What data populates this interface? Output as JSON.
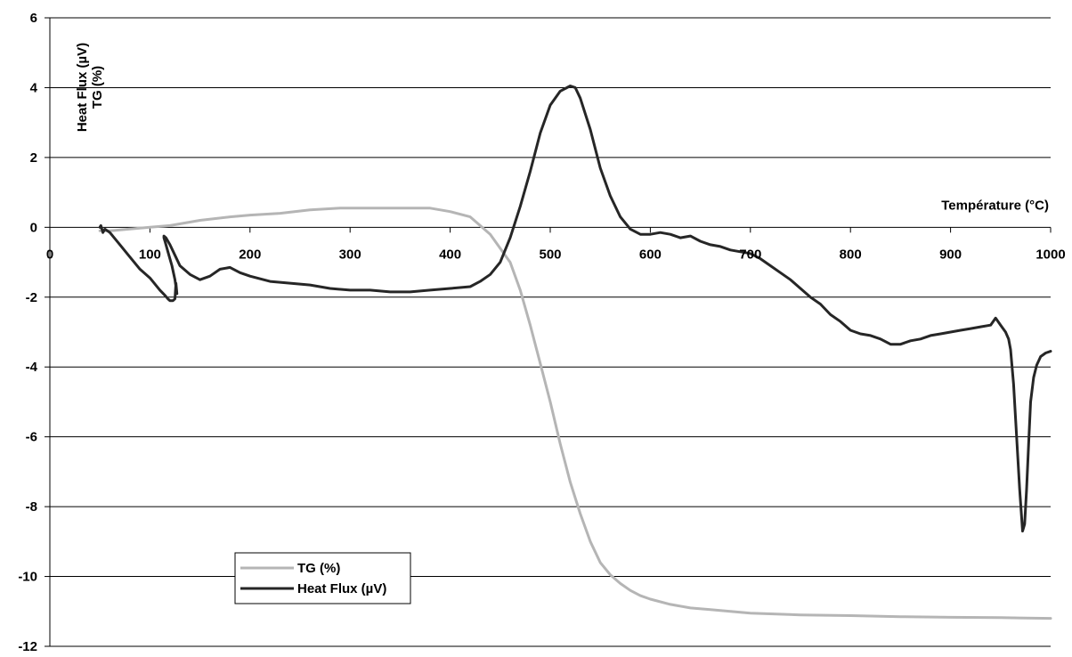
{
  "chart_data": {
    "type": "line",
    "xlabel": "Température (°C)",
    "ylabel_lines": [
      "Heat Flux (µV)",
      "TG (%)"
    ],
    "xlim": [
      0,
      1000
    ],
    "ylim": [
      -12,
      6
    ],
    "x_ticks": [
      0,
      100,
      200,
      300,
      400,
      500,
      600,
      700,
      800,
      900,
      1000
    ],
    "y_ticks": [
      6,
      4,
      2,
      0,
      -2,
      -4,
      -6,
      -8,
      -10,
      -12
    ],
    "grid": "horizontal",
    "legend": {
      "placement": "bottom-left",
      "entries": [
        "TG (%)",
        "Heat Flux (µV)"
      ]
    },
    "series": [
      {
        "name": "TG (%)",
        "color": "#b5b5b5",
        "x": [
          50,
          60,
          80,
          100,
          120,
          150,
          180,
          200,
          230,
          260,
          290,
          300,
          320,
          350,
          380,
          400,
          420,
          440,
          460,
          470,
          480,
          490,
          500,
          510,
          520,
          530,
          540,
          550,
          560,
          570,
          580,
          590,
          600,
          620,
          640,
          660,
          680,
          700,
          750,
          800,
          850,
          900,
          950,
          1000
        ],
        "values": [
          -0.1,
          -0.1,
          -0.05,
          0.0,
          0.05,
          0.2,
          0.3,
          0.35,
          0.4,
          0.5,
          0.55,
          0.55,
          0.55,
          0.55,
          0.55,
          0.45,
          0.3,
          -0.2,
          -1.0,
          -1.8,
          -2.8,
          -3.9,
          -5.0,
          -6.2,
          -7.3,
          -8.2,
          -9.0,
          -9.6,
          -9.95,
          -10.2,
          -10.4,
          -10.55,
          -10.65,
          -10.8,
          -10.9,
          -10.95,
          -11.0,
          -11.05,
          -11.1,
          -11.12,
          -11.15,
          -11.17,
          -11.18,
          -11.2
        ]
      },
      {
        "name": "Heat Flux (µV)",
        "color": "#262626",
        "x": [
          50,
          51,
          53,
          55,
          60,
          70,
          80,
          90,
          100,
          110,
          115,
          118,
          120,
          123,
          125,
          126,
          127,
          125,
          122,
          118,
          115,
          114,
          114,
          116,
          120,
          125,
          130,
          140,
          150,
          160,
          170,
          180,
          190,
          200,
          220,
          240,
          260,
          280,
          300,
          320,
          340,
          360,
          380,
          400,
          420,
          430,
          440,
          450,
          460,
          470,
          480,
          490,
          500,
          510,
          520,
          525,
          530,
          540,
          550,
          560,
          570,
          580,
          590,
          600,
          610,
          620,
          630,
          640,
          650,
          660,
          670,
          680,
          690,
          700,
          710,
          720,
          730,
          740,
          750,
          760,
          770,
          780,
          790,
          800,
          810,
          820,
          830,
          840,
          850,
          860,
          870,
          880,
          890,
          900,
          910,
          920,
          930,
          940,
          945,
          950,
          955,
          958,
          960,
          963,
          966,
          969,
          972,
          974,
          976,
          978,
          980,
          983,
          986,
          990,
          995,
          1000
        ],
        "values": [
          0.0,
          0.05,
          -0.15,
          -0.05,
          -0.15,
          -0.5,
          -0.85,
          -1.2,
          -1.45,
          -1.8,
          -1.95,
          -2.05,
          -2.1,
          -2.1,
          -2.05,
          -1.6,
          -1.9,
          -1.5,
          -1.1,
          -0.7,
          -0.4,
          -0.3,
          -0.25,
          -0.3,
          -0.5,
          -0.8,
          -1.1,
          -1.35,
          -1.5,
          -1.4,
          -1.2,
          -1.15,
          -1.3,
          -1.4,
          -1.55,
          -1.6,
          -1.65,
          -1.75,
          -1.8,
          -1.8,
          -1.85,
          -1.85,
          -1.8,
          -1.75,
          -1.7,
          -1.55,
          -1.35,
          -1.0,
          -0.3,
          0.6,
          1.6,
          2.7,
          3.5,
          3.9,
          4.05,
          4.0,
          3.7,
          2.8,
          1.7,
          0.9,
          0.3,
          -0.05,
          -0.2,
          -0.2,
          -0.15,
          -0.2,
          -0.3,
          -0.25,
          -0.4,
          -0.5,
          -0.55,
          -0.65,
          -0.7,
          -0.75,
          -0.9,
          -1.1,
          -1.3,
          -1.5,
          -1.75,
          -2.0,
          -2.2,
          -2.5,
          -2.7,
          -2.95,
          -3.05,
          -3.1,
          -3.2,
          -3.35,
          -3.35,
          -3.25,
          -3.2,
          -3.1,
          -3.05,
          -3.0,
          -2.95,
          -2.9,
          -2.85,
          -2.8,
          -2.6,
          -2.8,
          -3.0,
          -3.2,
          -3.5,
          -4.5,
          -6.0,
          -7.5,
          -8.7,
          -8.5,
          -7.5,
          -6.2,
          -5.0,
          -4.3,
          -3.95,
          -3.7,
          -3.6,
          -3.55
        ]
      }
    ]
  }
}
